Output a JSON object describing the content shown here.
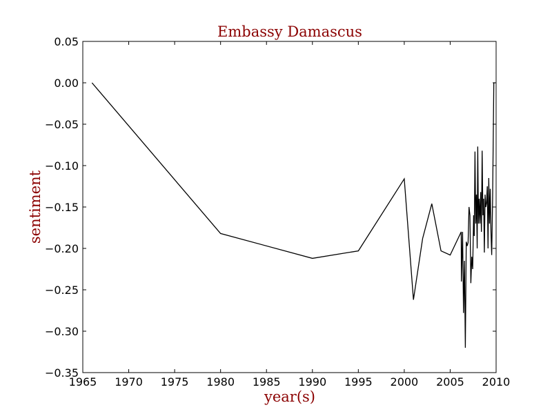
{
  "chart_data": {
    "type": "line",
    "title": "Embassy Damascus",
    "xlabel": "year(s)",
    "ylabel": "sentiment",
    "xlim": [
      1965,
      2010
    ],
    "ylim": [
      -0.35,
      0.05
    ],
    "grid": false,
    "x_ticks": [
      1965,
      1970,
      1975,
      1980,
      1985,
      1990,
      1995,
      2000,
      2005,
      2010
    ],
    "x_tick_labels": [
      "1965",
      "1970",
      "1975",
      "1980",
      "1985",
      "1990",
      "1995",
      "2000",
      "2005",
      "2010"
    ],
    "y_ticks": [
      0.05,
      0.0,
      -0.05,
      -0.1,
      -0.15,
      -0.2,
      -0.25,
      -0.3,
      -0.35
    ],
    "y_tick_labels": [
      "0.05",
      "0.00",
      "−0.05",
      "−0.10",
      "−0.15",
      "−0.20",
      "−0.25",
      "−0.30",
      "−0.35"
    ],
    "series": [
      {
        "color": "#000000",
        "points": [
          [
            1966.0,
            0.0
          ],
          [
            1980.0,
            -0.182
          ],
          [
            1990.0,
            -0.212
          ],
          [
            1995.0,
            -0.203
          ],
          [
            2000.0,
            -0.116
          ],
          [
            2001.0,
            -0.262
          ],
          [
            2002.0,
            -0.188
          ],
          [
            2003.0,
            -0.146
          ],
          [
            2004.0,
            -0.203
          ],
          [
            2005.0,
            -0.208
          ],
          [
            2006.2,
            -0.18
          ],
          [
            2006.22,
            -0.24
          ],
          [
            2006.35,
            -0.18
          ],
          [
            2006.45,
            -0.278
          ],
          [
            2006.55,
            -0.215
          ],
          [
            2006.65,
            -0.32
          ],
          [
            2006.75,
            -0.192
          ],
          [
            2006.85,
            -0.197
          ],
          [
            2006.95,
            -0.193
          ],
          [
            2007.05,
            -0.15
          ],
          [
            2007.15,
            -0.16
          ],
          [
            2007.25,
            -0.242
          ],
          [
            2007.35,
            -0.21
          ],
          [
            2007.45,
            -0.225
          ],
          [
            2007.55,
            -0.16
          ],
          [
            2007.62,
            -0.185
          ],
          [
            2007.7,
            -0.083
          ],
          [
            2007.78,
            -0.17
          ],
          [
            2007.86,
            -0.135
          ],
          [
            2007.94,
            -0.2
          ],
          [
            2008.0,
            -0.077
          ],
          [
            2008.08,
            -0.17
          ],
          [
            2008.16,
            -0.14
          ],
          [
            2008.24,
            -0.17
          ],
          [
            2008.32,
            -0.132
          ],
          [
            2008.4,
            -0.18
          ],
          [
            2008.48,
            -0.082
          ],
          [
            2008.56,
            -0.16
          ],
          [
            2008.64,
            -0.14
          ],
          [
            2008.72,
            -0.205
          ],
          [
            2008.8,
            -0.135
          ],
          [
            2008.88,
            -0.15
          ],
          [
            2008.96,
            -0.145
          ],
          [
            2009.04,
            -0.125
          ],
          [
            2009.12,
            -0.2
          ],
          [
            2009.2,
            -0.115
          ],
          [
            2009.28,
            -0.17
          ],
          [
            2009.36,
            -0.128
          ],
          [
            2009.44,
            -0.18
          ],
          [
            2009.52,
            -0.208
          ],
          [
            2009.62,
            -0.14
          ],
          [
            2009.75,
            0.0
          ],
          [
            2009.9,
            0.0
          ]
        ]
      }
    ]
  }
}
